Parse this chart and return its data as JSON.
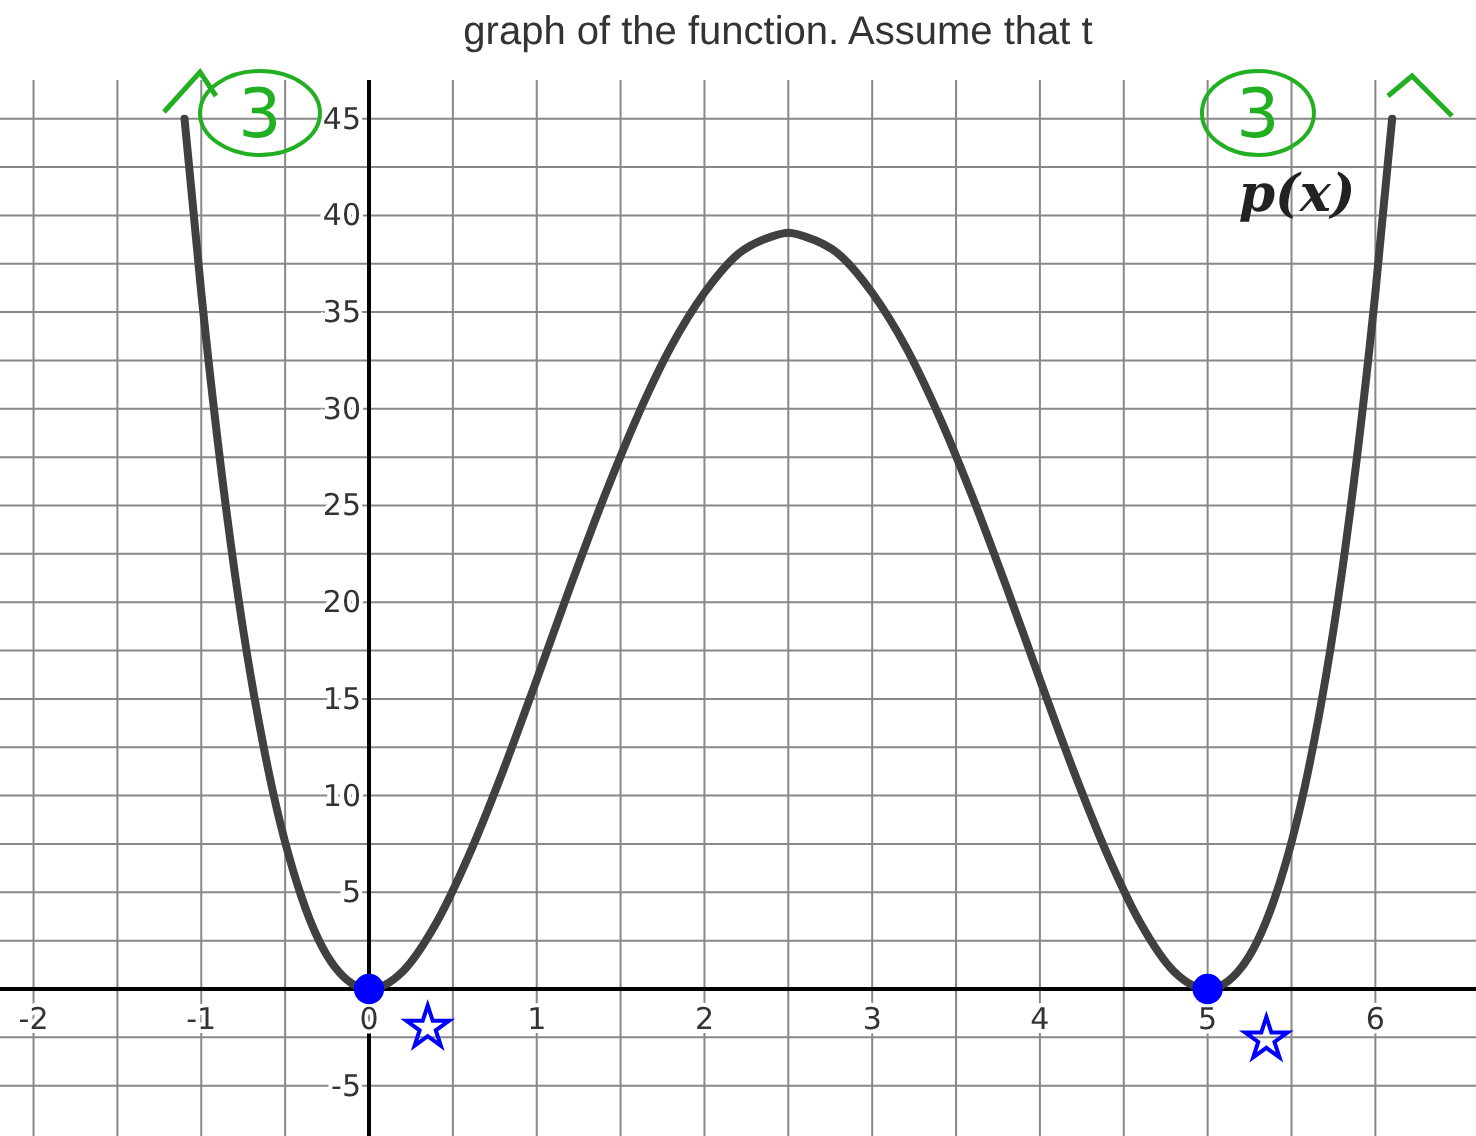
{
  "chart_data": {
    "type": "line",
    "title": "graph of the function. Assume that t",
    "xlim": [
      -2.2,
      6.6
    ],
    "ylim": [
      -7.6,
      47
    ],
    "xticks": [
      -2,
      {
        "value": -1.5,
        "label": null
      },
      -1,
      {
        "value": -0.5,
        "label": null
      },
      0,
      {
        "value": 0.5,
        "label": null
      },
      1,
      {
        "value": 1.5,
        "label": null
      },
      2,
      {
        "value": 2.5,
        "label": null
      },
      3,
      {
        "value": 3.5,
        "label": null
      },
      4,
      {
        "value": 4.5,
        "label": null
      },
      5,
      {
        "value": 5.5,
        "label": null
      },
      6
    ],
    "yticks": [
      -5,
      {
        "value": -2.5,
        "label": null
      },
      {
        "value": 0,
        "label": null
      },
      {
        "value": 2.5,
        "label": null
      },
      5,
      {
        "value": 7.5,
        "label": null
      },
      10,
      {
        "value": 12.5,
        "label": null
      },
      15,
      {
        "value": 17.5,
        "label": null
      },
      20,
      {
        "value": 22.5,
        "label": null
      },
      25,
      {
        "value": 27.5,
        "label": null
      },
      30,
      {
        "value": 32.5,
        "label": null
      },
      35,
      {
        "value": 37.5,
        "label": null
      },
      40,
      {
        "value": 42.5,
        "label": null
      },
      45
    ],
    "grid": true,
    "series": [
      {
        "name": "p(x)",
        "type": "line",
        "color": "#404040",
        "marker": "none",
        "x": [
          -1.1,
          -1,
          -0.8,
          -0.6,
          -0.4,
          -0.2,
          0,
          0.2,
          0.4,
          0.6,
          0.8,
          1,
          1.2,
          1.4,
          1.6,
          1.8,
          2,
          2.2,
          2.4,
          2.5,
          2.6,
          2.8,
          3,
          3.2,
          3.4,
          3.6,
          3.8,
          4,
          4.2,
          4.4,
          4.6,
          4.8,
          5,
          5.2,
          5.4,
          5.6,
          5.8,
          6,
          6.1
        ],
        "values": [
          45,
          36,
          21.5,
          11.3,
          4.7,
          1.1,
          0,
          0.9,
          3.4,
          7,
          11.3,
          16,
          20.8,
          25.4,
          29.6,
          33.2,
          36,
          38,
          38.9,
          39.1,
          38.9,
          38,
          36,
          33.2,
          29.6,
          25.4,
          20.8,
          16,
          11.3,
          7,
          3.4,
          0.9,
          0,
          1.1,
          4.7,
          11.3,
          21.5,
          36,
          45
        ]
      },
      {
        "type": "scatter",
        "color": "#0000ff",
        "marker": "circle",
        "x": [
          0,
          5
        ],
        "values": [
          0,
          0
        ]
      }
    ],
    "annotations": [
      "3",
      "3"
    ]
  }
}
